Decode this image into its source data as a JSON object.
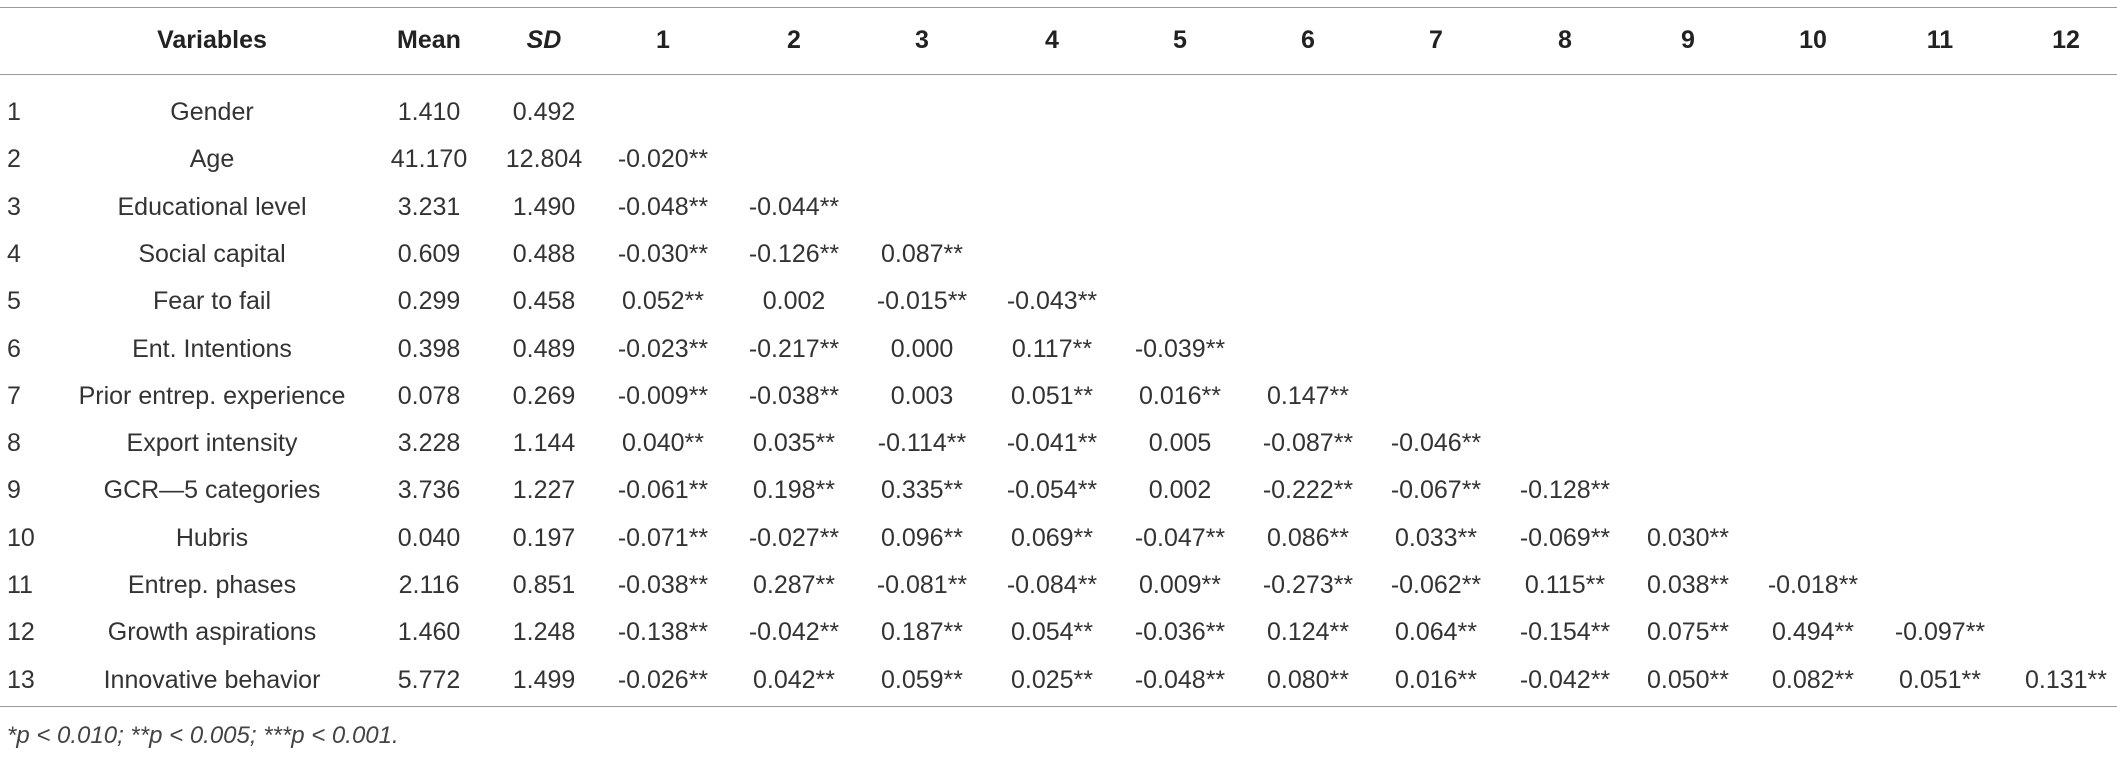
{
  "table": {
    "header": [
      "Variables",
      "Mean",
      "SD",
      "1",
      "2",
      "3",
      "4",
      "5",
      "6",
      "7",
      "8",
      "9",
      "10",
      "11",
      "12"
    ],
    "rows": [
      [
        "1",
        "Gender",
        "1.410",
        "0.492"
      ],
      [
        "2",
        "Age",
        "41.170",
        "12.804",
        "-0.020**"
      ],
      [
        "3",
        "Educational level",
        "3.231",
        "1.490",
        "-0.048**",
        "-0.044**"
      ],
      [
        "4",
        "Social capital",
        "0.609",
        "0.488",
        "-0.030**",
        "-0.126**",
        "0.087**"
      ],
      [
        "5",
        "Fear to fail",
        "0.299",
        "0.458",
        "0.052**",
        "0.002",
        "-0.015**",
        "-0.043**"
      ],
      [
        "6",
        "Ent. Intentions",
        "0.398",
        "0.489",
        "-0.023**",
        "-0.217**",
        "0.000",
        "0.117**",
        "-0.039**"
      ],
      [
        "7",
        "Prior entrep. experience",
        "0.078",
        "0.269",
        "-0.009**",
        "-0.038**",
        "0.003",
        "0.051**",
        "0.016**",
        "0.147**"
      ],
      [
        "8",
        "Export intensity",
        "3.228",
        "1.144",
        "0.040**",
        "0.035**",
        "-0.114**",
        "-0.041**",
        "0.005",
        "-0.087**",
        "-0.046**"
      ],
      [
        "9",
        "GCR—5 categories",
        "3.736",
        "1.227",
        "-0.061**",
        "0.198**",
        "0.335**",
        "-0.054**",
        "0.002",
        "-0.222**",
        "-0.067**",
        "-0.128**"
      ],
      [
        "10",
        "Hubris",
        "0.040",
        "0.197",
        "-0.071**",
        "-0.027**",
        "0.096**",
        "0.069**",
        "-0.047**",
        "0.086**",
        "0.033**",
        "-0.069**",
        "0.030**"
      ],
      [
        "11",
        "Entrep. phases",
        "2.116",
        "0.851",
        "-0.038**",
        "0.287**",
        "-0.081**",
        "-0.084**",
        "0.009**",
        "-0.273**",
        "-0.062**",
        "0.115**",
        "0.038**",
        "-0.018**"
      ],
      [
        "12",
        "Growth aspirations",
        "1.460",
        "1.248",
        "-0.138**",
        "-0.042**",
        "0.187**",
        "0.054**",
        "-0.036**",
        "0.124**",
        "0.064**",
        "-0.154**",
        "0.075**",
        "0.494**",
        "-0.097**"
      ],
      [
        "13",
        "Innovative behavior",
        "5.772",
        "1.499",
        "-0.026**",
        "0.042**",
        "0.059**",
        "0.025**",
        "-0.048**",
        "0.080**",
        "0.016**",
        "-0.042**",
        "0.050**",
        "0.082**",
        "0.051**",
        "0.131**"
      ]
    ],
    "footnote": "*p < 0.010; **p < 0.005; ***p < 0.001."
  }
}
